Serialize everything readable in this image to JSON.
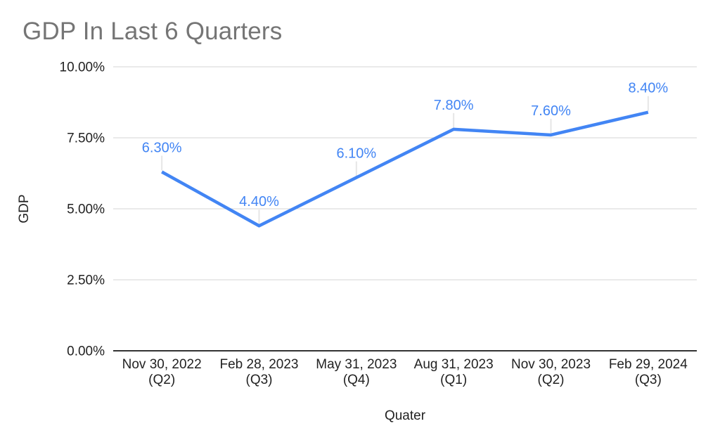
{
  "chart_data": {
    "type": "line",
    "title": "GDP In Last 6 Quarters",
    "xlabel": "Quater",
    "ylabel": "GDP",
    "categories": [
      [
        "Nov 30, 2022",
        "(Q2)"
      ],
      [
        "Feb 28, 2023",
        "(Q3)"
      ],
      [
        "May 31, 2023",
        "(Q4)"
      ],
      [
        "Aug 31, 2023",
        "(Q1)"
      ],
      [
        "Nov 30, 2023",
        "(Q2)"
      ],
      [
        "Feb 29, 2024",
        "(Q3)"
      ]
    ],
    "series": [
      {
        "name": "GDP",
        "values": [
          6.3,
          4.4,
          6.1,
          7.8,
          7.6,
          8.4
        ],
        "color": "#4285f4"
      }
    ],
    "data_labels": [
      "6.30%",
      "4.40%",
      "6.10%",
      "7.80%",
      "7.60%",
      "8.40%"
    ],
    "yticks": [
      {
        "value": 0,
        "label": "0.00%"
      },
      {
        "value": 2.5,
        "label": "2.50%"
      },
      {
        "value": 5,
        "label": "5.00%"
      },
      {
        "value": 7.5,
        "label": "7.50%"
      },
      {
        "value": 10,
        "label": "10.00%"
      }
    ],
    "ylim": [
      0,
      10
    ],
    "grid": true,
    "legend_position": "none"
  },
  "colors": {
    "background": "#ffffff",
    "series_line": "#4285f4",
    "data_label": "#4285f4",
    "gridline": "#d6d6d6",
    "axis_baseline": "#333333",
    "leader_line": "#e6e6e6",
    "title_text": "#757575",
    "tick_text": "#222222",
    "axis_title_text": "#222222"
  }
}
